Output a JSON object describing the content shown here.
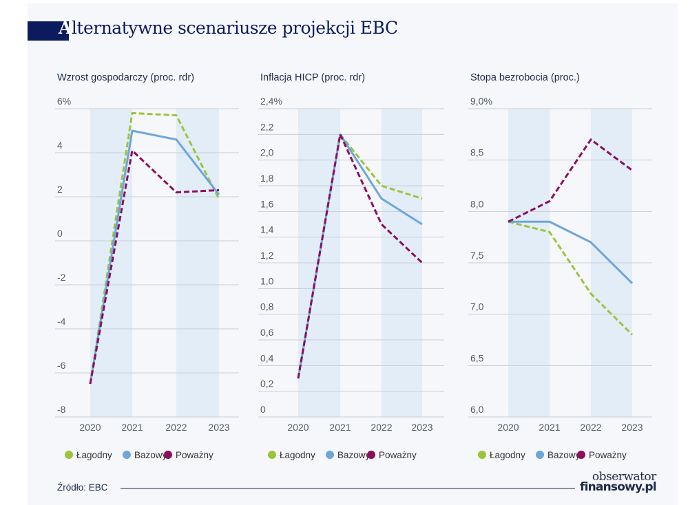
{
  "title_first_letter": "A",
  "title_rest": "lternatywne scenariusze projekcji EBC",
  "source": "Źródło: EBC",
  "logo": {
    "line1": "obserwator",
    "line2": "finansowy.pl"
  },
  "colors": {
    "Łagodny": "#9cc43a",
    "Bazowy": "#6ea6d8",
    "Poważny": "#8c0e5f",
    "band": "#e2edf7",
    "grid": "#c9cdd4",
    "title": "#0b1b5e"
  },
  "chart_data": [
    {
      "type": "line",
      "title": "Wzrost gospodarczy (proc. rdr)",
      "categories": [
        "2020",
        "2021",
        "2022",
        "2023"
      ],
      "ylim": [
        -8,
        6
      ],
      "yticks": [
        -8,
        -6,
        -4,
        -2,
        0,
        2,
        4,
        6
      ],
      "ytick_labels": [
        "-8",
        "-6",
        "-4",
        "-2",
        "0",
        "2",
        "4",
        "6%"
      ],
      "grid": true,
      "legend": "bottom",
      "series": [
        {
          "name": "Łagodny",
          "style": "dashed",
          "values": [
            -6.5,
            5.8,
            5.7,
            1.9
          ]
        },
        {
          "name": "Bazowy",
          "style": "solid",
          "values": [
            -6.5,
            5.0,
            4.6,
            2.1
          ]
        },
        {
          "name": "Poważny",
          "style": "dashed",
          "values": [
            -6.5,
            4.1,
            2.2,
            2.3
          ]
        }
      ]
    },
    {
      "type": "line",
      "title": "Inflacja HICP (proc. rdr)",
      "categories": [
        "2020",
        "2021",
        "2022",
        "2023"
      ],
      "ylim": [
        0,
        2.4
      ],
      "yticks": [
        0,
        0.2,
        0.4,
        0.6,
        0.8,
        1.0,
        1.2,
        1.4,
        1.6,
        1.8,
        2.0,
        2.2,
        2.4
      ],
      "ytick_labels": [
        "0",
        "0,2",
        "0,4",
        "0,6",
        "0,8",
        "1,0",
        "1,2",
        "1,4",
        "1,6",
        "1,8",
        "2,0",
        "2,2",
        "2,4%"
      ],
      "grid": true,
      "legend": "bottom",
      "series": [
        {
          "name": "Łagodny",
          "style": "dashed",
          "values": [
            0.3,
            2.2,
            1.8,
            1.7
          ]
        },
        {
          "name": "Bazowy",
          "style": "solid",
          "values": [
            0.3,
            2.2,
            1.7,
            1.5
          ]
        },
        {
          "name": "Poważny",
          "style": "dashed",
          "values": [
            0.3,
            2.2,
            1.5,
            1.2
          ]
        }
      ]
    },
    {
      "type": "line",
      "title": "Stopa bezrobocia (proc.)",
      "categories": [
        "2020",
        "2021",
        "2022",
        "2023"
      ],
      "ylim": [
        6.0,
        9.0
      ],
      "yticks": [
        6.0,
        6.5,
        7.0,
        7.5,
        8.0,
        8.5,
        9.0
      ],
      "ytick_labels": [
        "6,0",
        "6,5",
        "7,0",
        "7,5",
        "8,0",
        "8,5",
        "9,0%"
      ],
      "grid": true,
      "legend": "bottom",
      "series": [
        {
          "name": "Łagodny",
          "style": "dashed",
          "values": [
            7.9,
            7.8,
            7.2,
            6.8
          ]
        },
        {
          "name": "Bazowy",
          "style": "solid",
          "values": [
            7.9,
            7.9,
            7.7,
            7.3
          ]
        },
        {
          "name": "Poważny",
          "style": "dashed",
          "values": [
            7.9,
            8.1,
            8.7,
            8.4
          ]
        }
      ]
    }
  ]
}
